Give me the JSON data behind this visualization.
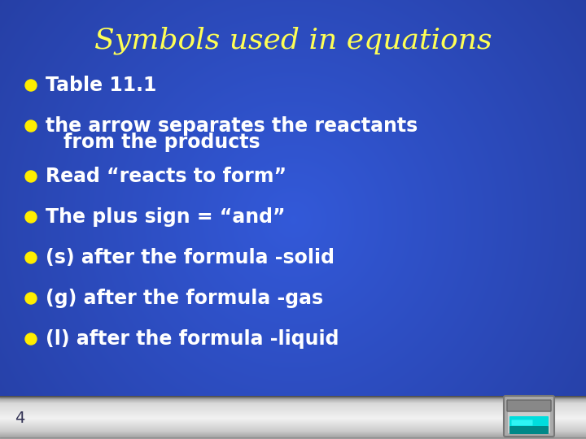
{
  "title": "Symbols used in equations",
  "title_color": "#FFFF55",
  "title_fontsize": 26,
  "bg_color_left": "#3355cc",
  "bg_color_right": "#1133aa",
  "bullet_color": "#FFEE00",
  "text_color": "#FFFFFF",
  "bullet_fontsize": 17,
  "footer_number": "4",
  "bullets": [
    {
      "text": "Table 11.1",
      "line2": null
    },
    {
      "text": "the arrow separates the reactants",
      "line2": "from the products"
    },
    {
      "text": "Read “reacts to form”",
      "line2": null
    },
    {
      "text": "The plus sign = “and”",
      "line2": null
    },
    {
      "text": "(s) after the formula -solid",
      "line2": null
    },
    {
      "text": "(g) after the formula -gas",
      "line2": null
    },
    {
      "text": "(l) after the formula -liquid",
      "line2": null
    }
  ]
}
